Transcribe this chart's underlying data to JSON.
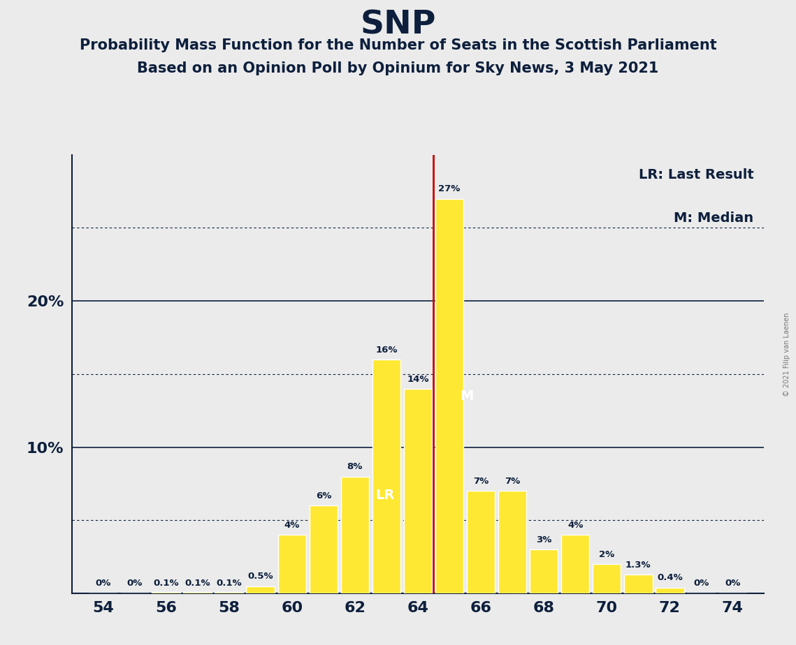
{
  "title": "SNP",
  "subtitle1": "Probability Mass Function for the Number of Seats in the Scottish Parliament",
  "subtitle2": "Based on an Opinion Poll by Opinium for Sky News, 3 May 2021",
  "copyright": "© 2021 Filip van Laenen",
  "seats": [
    54,
    55,
    56,
    57,
    58,
    59,
    60,
    61,
    62,
    63,
    64,
    65,
    66,
    67,
    68,
    69,
    70,
    71,
    72,
    73,
    74
  ],
  "probabilities": [
    0.0,
    0.0,
    0.1,
    0.1,
    0.1,
    0.5,
    4.0,
    6.0,
    8.0,
    16.0,
    14.0,
    27.0,
    7.0,
    7.0,
    3.0,
    4.0,
    2.0,
    1.3,
    0.4,
    0.0,
    0.0
  ],
  "labels": [
    "0%",
    "0%",
    "0.1%",
    "0.1%",
    "0.1%",
    "0.5%",
    "4%",
    "6%",
    "8%",
    "16%",
    "14%",
    "27%",
    "7%",
    "7%",
    "3%",
    "4%",
    "2%",
    "1.3%",
    "0.4%",
    "0%",
    "0%"
  ],
  "bar_color": "#FFE833",
  "bar_edge_color": "#FFFFFF",
  "last_result_seat": 63,
  "median_seat": 65,
  "vline_x": 64.5,
  "vline_color": "#CC0000",
  "background_color": "#EBEBEB",
  "plot_bg_color": "#EBEBEB",
  "title_color": "#0D1F3C",
  "dotted_lines": [
    5.0,
    15.0,
    25.0
  ],
  "solid_lines": [
    10.0,
    20.0
  ],
  "xlim": [
    53,
    75
  ],
  "ylim": [
    0,
    30
  ],
  "xtick_positions": [
    54,
    56,
    58,
    60,
    62,
    64,
    66,
    68,
    70,
    72,
    74
  ],
  "legend_lr": "LR: Last Result",
  "legend_m": "M: Median",
  "lr_label": "LR",
  "m_label": "M",
  "figsize": [
    11.39,
    9.24
  ],
  "dpi": 100
}
